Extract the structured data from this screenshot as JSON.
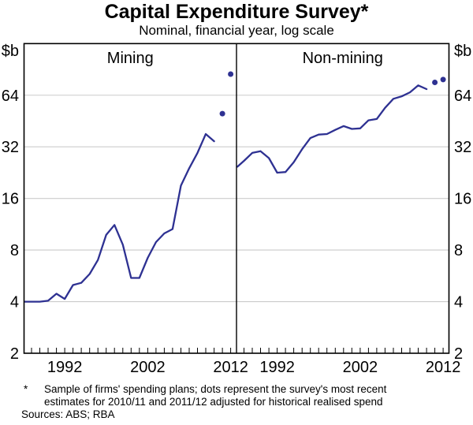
{
  "header": {
    "title": "Capital Expenditure Survey*",
    "subtitle": "Nominal, financial year, log scale"
  },
  "footnote": {
    "marker": "*",
    "line1": "Sample of firms' spending plans; dots represent the survey's most recent",
    "line2": "estimates for 2010/11 and 2011/12 adjusted for historical realised spend",
    "sources": "Sources: ABS; RBA"
  },
  "colors": {
    "series": "#2e3192",
    "gridline": "#cbcbcb",
    "frame": "#000000"
  },
  "chart_data": {
    "type": "line",
    "title": "Capital Expenditure Survey*",
    "subtitle": "Nominal, financial year, log scale",
    "unit_label": "$b",
    "y_scale": "log2",
    "ylim": [
      2,
      128
    ],
    "yticks": [
      64,
      32,
      16,
      8,
      4,
      2
    ],
    "grid": "horizontal",
    "legend": "none",
    "x_range": [
      1987.1,
      2012.7
    ],
    "x_minor_tick_range": [
      1988,
      2012
    ],
    "x_tick_years_labeled": [
      1992,
      2002,
      2012
    ],
    "panels": [
      {
        "label": "Mining",
        "series_start_year": 1987,
        "values": [
          4.0,
          4.0,
          4.0,
          4.05,
          4.45,
          4.15,
          5.0,
          5.15,
          5.8,
          7.0,
          9.8,
          11.2,
          8.6,
          5.5,
          5.5,
          7.2,
          8.9,
          10.0,
          10.6,
          19.0,
          24.0,
          29.5,
          38.0,
          34.5
        ],
        "dots": [
          {
            "year": 2011,
            "value": 50
          },
          {
            "year": 2012,
            "value": 85
          }
        ]
      },
      {
        "label": "Non-mining",
        "series_start_year": 1987,
        "values": [
          24.5,
          26.5,
          29.5,
          30.2,
          27.5,
          22.6,
          22.8,
          26.0,
          31.0,
          36.0,
          37.7,
          38.0,
          40.2,
          42.3,
          40.7,
          41.0,
          45.7,
          46.5,
          54.0,
          61.0,
          63.0,
          66.5,
          73.0,
          69.5
        ],
        "dots": [
          {
            "year": 2011,
            "value": 76
          },
          {
            "year": 2012,
            "value": 79
          }
        ]
      }
    ]
  }
}
